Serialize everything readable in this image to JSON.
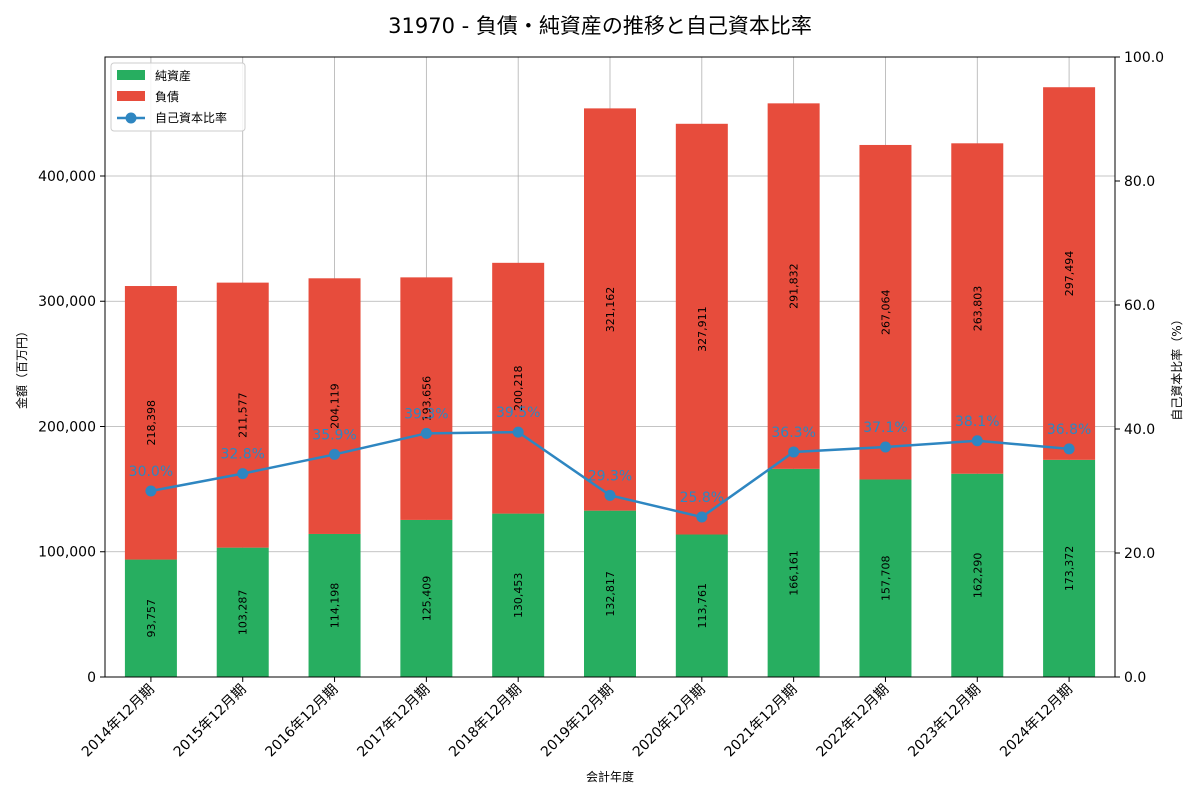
{
  "chart_data": {
    "type": "bar",
    "stacked": true,
    "title": "31970 - 負債・純資産の推移と自己資本比率",
    "xlabel": "会計年度",
    "ylabel": "金額（百万円）",
    "y2label": "自己資本比率（%）",
    "ylim": [
      0,
      495000
    ],
    "y2lim": [
      0,
      100
    ],
    "yticks": [
      "0",
      "100,000",
      "200,000",
      "300,000",
      "400,000"
    ],
    "yticks_values": [
      0,
      100000,
      200000,
      300000,
      400000
    ],
    "y2ticks": [
      "0.0",
      "20.0",
      "40.0",
      "60.0",
      "80.0",
      "100.0"
    ],
    "y2ticks_values": [
      0,
      20,
      40,
      60,
      80,
      100
    ],
    "grid": true,
    "legend_position": "top-left",
    "categories": [
      "2014年12月期",
      "2015年12月期",
      "2016年12月期",
      "2017年12月期",
      "2018年12月期",
      "2019年12月期",
      "2020年12月期",
      "2021年12月期",
      "2022年12月期",
      "2023年12月期",
      "2024年12月期"
    ],
    "series": [
      {
        "name": "純資産",
        "type": "bar",
        "color": "#27ae60",
        "values": [
          93757,
          103287,
          114198,
          125409,
          130453,
          132817,
          113761,
          166161,
          157708,
          162290,
          173372
        ],
        "labels": [
          "93,757",
          "103,287",
          "114,198",
          "125,409",
          "130,453",
          "132,817",
          "113,761",
          "166,161",
          "157,708",
          "162,290",
          "173,372"
        ]
      },
      {
        "name": "負債",
        "type": "bar",
        "color": "#e74c3c",
        "values": [
          218398,
          211577,
          204119,
          193656,
          200218,
          321162,
          327911,
          291832,
          267064,
          263803,
          297494
        ],
        "labels": [
          "218,398",
          "211,577",
          "204,119",
          "193,656",
          "200,218",
          "321,162",
          "327,911",
          "291,832",
          "267,064",
          "263,803",
          "297,494"
        ]
      },
      {
        "name": "自己資本比率",
        "type": "line",
        "axis": "right",
        "color": "#2e86c1",
        "values": [
          30.0,
          32.8,
          35.9,
          39.3,
          39.5,
          29.3,
          25.8,
          36.3,
          37.1,
          38.1,
          36.8
        ],
        "labels": [
          "30.0%",
          "32.8%",
          "35.9%",
          "39.3%",
          "39.5%",
          "29.3%",
          "25.8%",
          "36.3%",
          "37.1%",
          "38.1%",
          "36.8%"
        ]
      }
    ]
  }
}
